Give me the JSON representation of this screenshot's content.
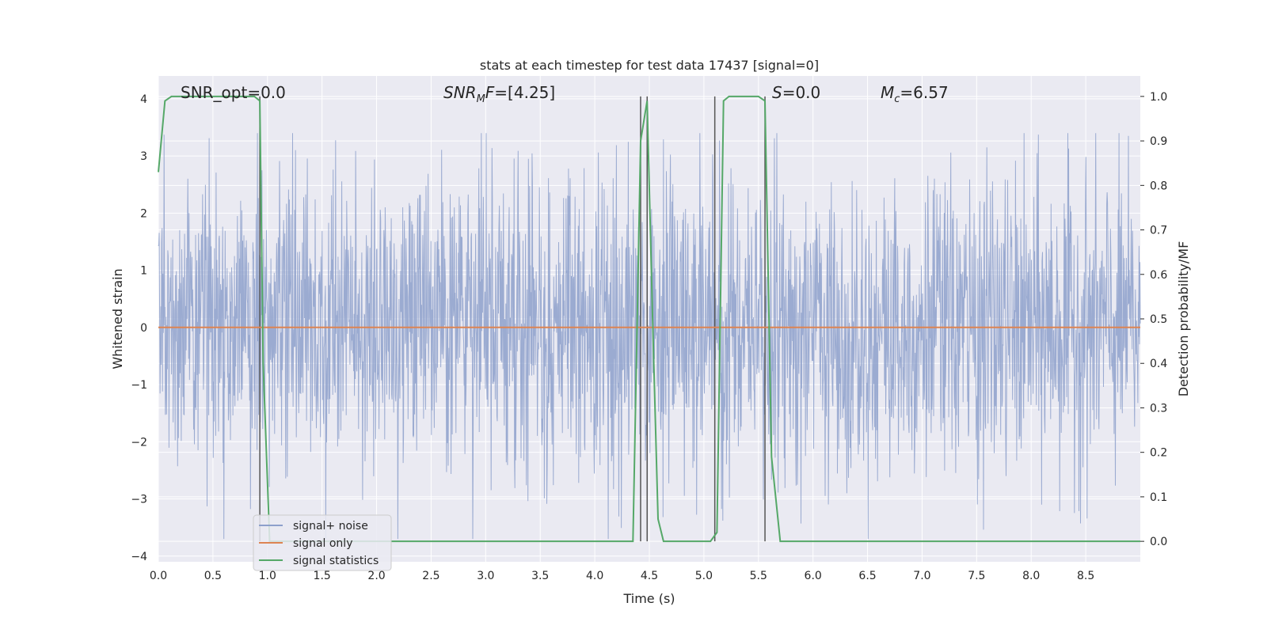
{
  "chart_data": {
    "type": "line",
    "title": "stats at each timestep for test data 17437 [signal=0]",
    "xlabel": "Time (s)",
    "ylabel_left": "Whitened strain",
    "ylabel_right": "Detection probability/MF",
    "xlim": [
      0.0,
      9.0
    ],
    "ylim_left": [
      -4.1,
      4.4
    ],
    "ylim_right": [
      -0.046,
      1.046
    ],
    "x_ticks": [
      "0.0",
      "0.5",
      "1.0",
      "1.5",
      "2.0",
      "2.5",
      "3.0",
      "3.5",
      "4.0",
      "4.5",
      "5.0",
      "5.5",
      "6.0",
      "6.5",
      "7.0",
      "7.5",
      "8.0",
      "8.5"
    ],
    "y_ticks_left": [
      "−4",
      "−3",
      "−2",
      "−1",
      "0",
      "1",
      "2",
      "3",
      "4"
    ],
    "y_ticks_right": [
      "0.0",
      "0.1",
      "0.2",
      "0.3",
      "0.4",
      "0.5",
      "0.6",
      "0.7",
      "0.8",
      "0.9",
      "1.0"
    ],
    "grid": true,
    "annotations": {
      "snr_opt": "SNR_opt=0.0",
      "snr_mf_main": "SNR",
      "snr_mf_sub": "M",
      "snr_mf_rest": "F=[4.25]",
      "s_main": "S",
      "s_rest": "=0.0",
      "mc_main": "M",
      "mc_sub": "c",
      "mc_rest": "=6.57"
    },
    "legend": {
      "placement": "lower-left",
      "entries": [
        "signal+ noise",
        "signal only",
        "signal statistics"
      ]
    },
    "series": [
      {
        "name": "signal+ noise",
        "color": "#8da0cb",
        "axis": "left",
        "kind": "noise",
        "amplitude_typical": 1.3,
        "amplitude_peak_range": [
          -3.7,
          3.4
        ]
      },
      {
        "name": "signal only",
        "color": "#dd8452",
        "axis": "left",
        "x": [
          0.0,
          9.0
        ],
        "y": [
          0.0,
          0.0
        ]
      },
      {
        "name": "signal statistics",
        "color": "#55a868",
        "axis": "right",
        "x": [
          0.0,
          0.06,
          0.12,
          0.2,
          0.3,
          0.5,
          0.7,
          0.88,
          0.93,
          0.96,
          1.02,
          1.2,
          2.0,
          3.0,
          4.0,
          4.35,
          4.42,
          4.48,
          4.53,
          4.58,
          4.63,
          4.8,
          5.0,
          5.06,
          5.12,
          5.18,
          5.23,
          5.3,
          5.5,
          5.56,
          5.62,
          5.7,
          6.0,
          7.0,
          8.0,
          9.0
        ],
        "y": [
          0.83,
          0.99,
          1.0,
          1.0,
          1.0,
          1.0,
          1.0,
          1.0,
          0.99,
          0.4,
          0.0,
          0.0,
          0.0,
          0.0,
          0.0,
          0.0,
          0.9,
          0.99,
          0.5,
          0.05,
          0.0,
          0.0,
          0.0,
          0.0,
          0.02,
          0.99,
          1.0,
          1.0,
          1.0,
          0.99,
          0.19,
          0.0,
          0.0,
          0.0,
          0.0,
          0.0
        ]
      }
    ],
    "vertical_markers_x": [
      0.93,
      4.42,
      4.48,
      5.1,
      5.56
    ],
    "colors": {
      "axes_bg": "#eaeaf2",
      "grid": "#ffffff",
      "marker": "#555555"
    }
  }
}
